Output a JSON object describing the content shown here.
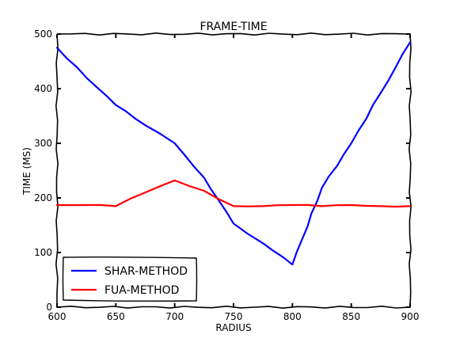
{
  "chart_data": {
    "type": "line",
    "title": "FRAME-TIME",
    "xlabel": "RADIUS",
    "ylabel": "TIME (MS)",
    "xlim": [
      600,
      900
    ],
    "ylim": [
      0,
      500
    ],
    "xticks": [
      600,
      650,
      700,
      750,
      800,
      850,
      900
    ],
    "yticks": [
      0,
      100,
      200,
      300,
      400,
      500
    ],
    "grid": false,
    "legend_position": "lower-left",
    "series": [
      {
        "name": "SHAR-METHOD",
        "color": "#0000ff",
        "x": [
          600,
          625,
          650,
          675,
          700,
          725,
          750,
          775,
          800,
          825,
          850,
          875,
          900
        ],
        "y": [
          475,
          420,
          370,
          333,
          300,
          237,
          153,
          117,
          78,
          218,
          300,
          392,
          485
        ]
      },
      {
        "name": "FUA-METHOD",
        "color": "#ff0000",
        "x": [
          600,
          625,
          650,
          675,
          700,
          725,
          750,
          775,
          800,
          825,
          850,
          875,
          900
        ],
        "y": [
          187,
          187,
          185,
          210,
          232,
          213,
          185,
          185,
          187,
          185,
          187,
          185,
          185
        ]
      }
    ]
  }
}
